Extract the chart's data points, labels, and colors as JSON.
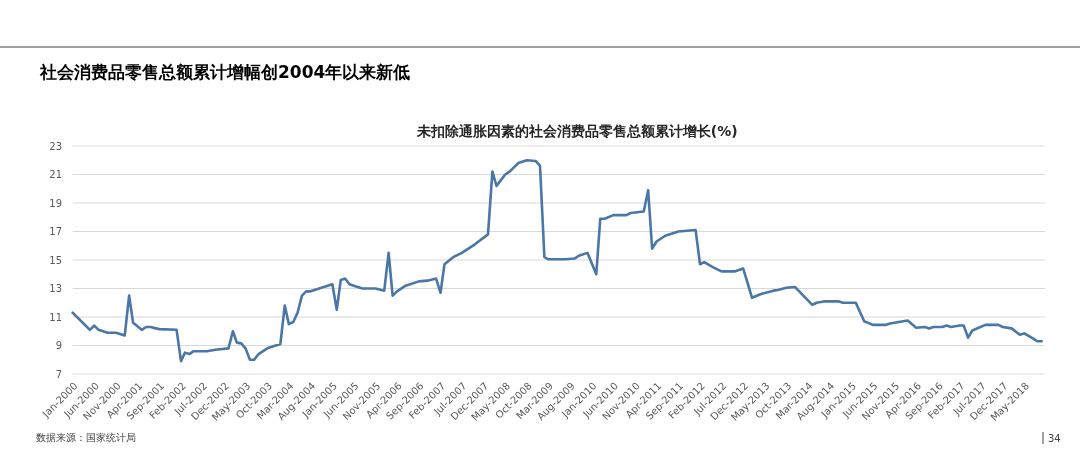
{
  "chart_data": {
    "type": "line",
    "title": "社会消费品零售总额累计增幅创2004年以来新低",
    "subtitle": "未扣除通胀因素的社会消费品零售总额累计增长(%)",
    "annotations": [
      "数据来源：国家统计局",
      "34"
    ],
    "x": [
      "2000-01",
      "2000-04",
      "2000-05",
      "2000-06",
      "2000-07",
      "2000-09",
      "2000-11",
      "2001-01",
      "2001-02",
      "2001-03",
      "2001-05",
      "2001-06",
      "2001-07",
      "2001-09",
      "2002-01",
      "2002-02",
      "2002-03",
      "2002-04",
      "2002-05",
      "2002-08",
      "2002-10",
      "2003-01",
      "2003-02",
      "2003-03",
      "2003-04",
      "2003-05",
      "2003-06",
      "2003-07",
      "2003-08",
      "2003-10",
      "2004-01",
      "2004-02",
      "2004-03",
      "2004-04",
      "2004-05",
      "2004-06",
      "2004-07",
      "2004-08",
      "2005-01",
      "2005-02",
      "2005-03",
      "2005-04",
      "2005-05",
      "2005-06",
      "2005-08",
      "2005-11",
      "2006-01",
      "2006-02",
      "2006-03",
      "2006-04",
      "2006-06",
      "2006-09",
      "2006-11",
      "2007-01",
      "2007-02",
      "2007-03",
      "2007-05",
      "2007-07",
      "2007-10",
      "2008-01",
      "2008-02",
      "2008-03",
      "2008-05",
      "2008-06",
      "2008-08",
      "2008-10",
      "2008-12",
      "2009-01",
      "2009-02",
      "2009-03",
      "2009-07",
      "2009-09",
      "2009-10",
      "2009-12",
      "2010-02",
      "2010-03",
      "2010-04",
      "2010-06",
      "2010-09",
      "2010-10",
      "2011-01",
      "2011-02",
      "2011-03",
      "2011-04",
      "2011-06",
      "2011-09",
      "2012-01",
      "2012-02",
      "2012-03",
      "2012-05",
      "2012-07",
      "2012-10",
      "2012-12",
      "2013-02",
      "2013-04",
      "2013-07",
      "2013-08",
      "2013-10",
      "2013-12",
      "2014-04",
      "2014-05",
      "2014-07",
      "2014-10",
      "2014-11",
      "2015-02",
      "2015-04",
      "2015-06",
      "2015-09",
      "2015-10",
      "2015-12",
      "2016-02",
      "2016-04",
      "2016-06",
      "2016-07",
      "2016-08",
      "2016-10",
      "2016-11",
      "2016-12",
      "2017-02",
      "2017-03",
      "2017-04",
      "2017-05",
      "2017-08",
      "2017-11",
      "2017-12",
      "2018-02",
      "2018-04",
      "2018-05",
      "2018-07",
      "2018-08",
      "2018-09"
    ],
    "series": [
      {
        "color": "#4a76a8",
        "values": [
          11.3,
          10.4,
          10.1,
          10.4,
          10.1,
          9.9,
          9.9,
          9.7,
          12.5,
          10.6,
          10.1,
          10.3,
          10.3,
          10.15,
          10.1,
          7.9,
          8.5,
          8.4,
          8.6,
          8.6,
          8.7,
          8.8,
          10.0,
          9.2,
          9.15,
          8.8,
          8.0,
          8.0,
          8.4,
          8.8,
          9.1,
          11.8,
          10.5,
          10.65,
          11.3,
          12.5,
          12.8,
          12.8,
          13.3,
          11.5,
          13.6,
          13.7,
          13.3,
          13.2,
          13.0,
          13.0,
          12.85,
          15.5,
          12.5,
          12.8,
          13.2,
          13.5,
          13.55,
          13.7,
          12.7,
          14.7,
          15.2,
          15.5,
          16.1,
          16.8,
          21.2,
          20.2,
          21.0,
          21.2,
          21.8,
          22.0,
          21.95,
          21.6,
          15.2,
          15.05,
          15.05,
          15.1,
          15.3,
          15.5,
          14.0,
          17.9,
          17.9,
          18.15,
          18.15,
          18.3,
          18.4,
          19.9,
          15.8,
          16.3,
          16.7,
          17.0,
          17.1,
          14.7,
          14.85,
          14.5,
          14.2,
          14.2,
          14.4,
          12.35,
          12.6,
          12.85,
          12.9,
          13.05,
          13.1,
          11.85,
          12.0,
          12.1,
          12.1,
          12.0,
          12.0,
          10.7,
          10.45,
          10.45,
          10.55,
          10.65,
          10.75,
          10.25,
          10.3,
          10.2,
          10.3,
          10.3,
          10.4,
          10.3,
          10.4,
          10.4,
          9.55,
          10.05,
          10.45,
          10.45,
          10.3,
          10.2,
          9.75,
          9.85,
          9.5,
          9.3,
          9.3
        ]
      }
    ],
    "xlim": [
      "2000-01",
      "2018-09"
    ],
    "xticks": [
      {
        "value": "2000-01",
        "label": "Jan-2000"
      },
      {
        "value": "2000-06",
        "label": "Jun-2000"
      },
      {
        "value": "2000-11",
        "label": "Nov-2000"
      },
      {
        "value": "2001-04",
        "label": "Apr-2001"
      },
      {
        "value": "2001-09",
        "label": "Sep-2001"
      },
      {
        "value": "2002-02",
        "label": "Feb-2002"
      },
      {
        "value": "2002-07",
        "label": "Jul-2002"
      },
      {
        "value": "2002-12",
        "label": "Dec-2002"
      },
      {
        "value": "2003-05",
        "label": "May-2003"
      },
      {
        "value": "2003-10",
        "label": "Oct-2003"
      },
      {
        "value": "2004-03",
        "label": "Mar-2004"
      },
      {
        "value": "2004-08",
        "label": "Aug-2004"
      },
      {
        "value": "2005-01",
        "label": "Jan-2005"
      },
      {
        "value": "2005-06",
        "label": "Jun-2005"
      },
      {
        "value": "2005-11",
        "label": "Nov-2005"
      },
      {
        "value": "2006-04",
        "label": "Apr-2006"
      },
      {
        "value": "2006-09",
        "label": "Sep-2006"
      },
      {
        "value": "2007-02",
        "label": "Feb-2007"
      },
      {
        "value": "2007-07",
        "label": "Jul-2007"
      },
      {
        "value": "2007-12",
        "label": "Dec-2007"
      },
      {
        "value": "2008-05",
        "label": "May-2008"
      },
      {
        "value": "2008-10",
        "label": "Oct-2008"
      },
      {
        "value": "2009-03",
        "label": "Mar-2009"
      },
      {
        "value": "2009-08",
        "label": "Aug-2009"
      },
      {
        "value": "2010-01",
        "label": "Jan-2010"
      },
      {
        "value": "2010-06",
        "label": "Jun-2010"
      },
      {
        "value": "2010-11",
        "label": "Nov-2010"
      },
      {
        "value": "2011-04",
        "label": "Apr-2011"
      },
      {
        "value": "2011-09",
        "label": "Sep-2011"
      },
      {
        "value": "2012-02",
        "label": "Feb-2012"
      },
      {
        "value": "2012-07",
        "label": "Jul-2012"
      },
      {
        "value": "2012-12",
        "label": "Dec-2012"
      },
      {
        "value": "2013-05",
        "label": "May-2013"
      },
      {
        "value": "2013-10",
        "label": "Oct-2013"
      },
      {
        "value": "2014-03",
        "label": "Mar-2014"
      },
      {
        "value": "2014-08",
        "label": "Aug-2014"
      },
      {
        "value": "2015-01",
        "label": "Jan-2015"
      },
      {
        "value": "2015-06",
        "label": "Jun-2015"
      },
      {
        "value": "2015-11",
        "label": "Nov-2015"
      },
      {
        "value": "2016-04",
        "label": "Apr-2016"
      },
      {
        "value": "2016-09",
        "label": "Sep-2016"
      },
      {
        "value": "2017-02",
        "label": "Feb-2017"
      },
      {
        "value": "2017-07",
        "label": "Jul-2017"
      },
      {
        "value": "2017-12",
        "label": "Dec-2017"
      },
      {
        "value": "2018-05",
        "label": "May-2018"
      }
    ],
    "ylim": [
      7,
      23
    ],
    "yticks": [
      7,
      9,
      11,
      13,
      15,
      17,
      19,
      21,
      23
    ],
    "grid": "y"
  }
}
